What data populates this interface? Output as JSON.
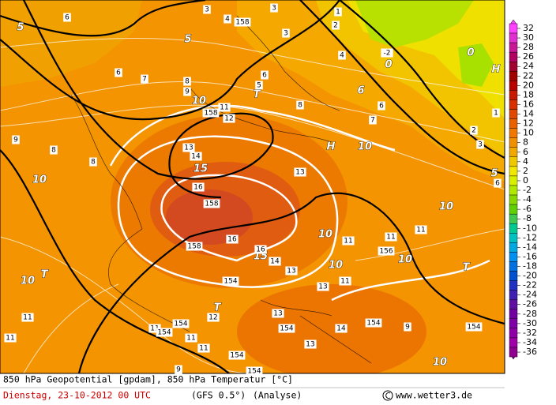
{
  "map_labels": [
    "5",
    "5",
    "6",
    "3",
    "4",
    "158",
    "3",
    "1",
    "2",
    "3",
    "4",
    "-2",
    "0",
    "0",
    "H",
    "6",
    "7",
    "8",
    "9",
    "5",
    "6",
    "T",
    "10",
    "11",
    "158",
    "12",
    "8",
    "6",
    "6",
    "7",
    "H",
    "10",
    "9",
    "8",
    "8",
    "13",
    "14",
    "15",
    "13",
    "16",
    "158",
    "10",
    "10",
    "158",
    "16",
    "10",
    "11",
    "11",
    "11",
    "15",
    "16",
    "14",
    "156",
    "10",
    "T",
    "10",
    "13",
    "11",
    "13",
    "10",
    "T",
    "154",
    "T",
    "12",
    "13",
    "11",
    "14",
    "154",
    "9",
    "154",
    "154",
    "154",
    "11",
    "154",
    "11",
    "11",
    "13",
    "154",
    "11",
    "10",
    "154",
    "9",
    "2",
    "3",
    "1",
    "5",
    "6"
  ],
  "colorbar": {
    "ticks": [
      32,
      30,
      28,
      26,
      24,
      22,
      20,
      18,
      16,
      14,
      12,
      10,
      8,
      6,
      4,
      2,
      0,
      -2,
      -4,
      -6,
      -8,
      -10,
      -12,
      -14,
      -16,
      -18,
      -20,
      -22,
      -24,
      -26,
      -28,
      -30,
      -32,
      -34,
      -36
    ],
    "colors": [
      "#ff40ff",
      "#e030d0",
      "#c81896",
      "#b00060",
      "#a00030",
      "#a00000",
      "#b80000",
      "#c81800",
      "#d83000",
      "#e04800",
      "#e86000",
      "#f07800",
      "#f09000",
      "#f0a800",
      "#f0c800",
      "#f0e800",
      "#d8f000",
      "#b0e800",
      "#88d800",
      "#60d000",
      "#40c850",
      "#00c890",
      "#00c0c0",
      "#00a8e0",
      "#0090f0",
      "#0070e0",
      "#0050d0",
      "#2030c0",
      "#4020b0",
      "#6010a0",
      "#7000a0",
      "#8000a8",
      "#9000a8",
      "#a000a8",
      "#900090"
    ]
  },
  "footer": {
    "title": "850 hPa Geopotential [gpdam], 850 hPa Temperatur [°C]",
    "date": "Dienstag, 23-10-2012   00 UTC",
    "model": "(GFS 0.5°)",
    "run": "(Analyse)",
    "site": "www.wetter3.de"
  }
}
